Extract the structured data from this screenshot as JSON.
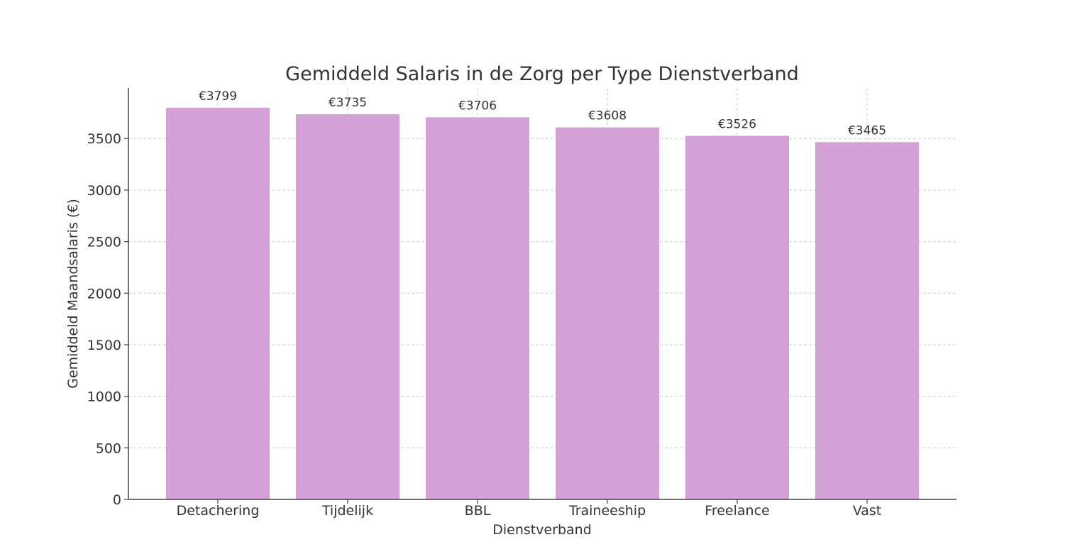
{
  "chart_data": {
    "type": "bar",
    "title": "Gemiddeld Salaris in de Zorg per Type Dienstverband",
    "xlabel": "Dienstverband",
    "ylabel": "Gemiddeld Maandsalaris (€)",
    "categories": [
      "Detachering",
      "Tijdelijk",
      "BBL",
      "Traineeship",
      "Freelance",
      "Vast"
    ],
    "values": [
      3799,
      3735,
      3706,
      3608,
      3526,
      3465
    ],
    "data_labels": [
      "€3799",
      "€3735",
      "€3706",
      "€3608",
      "€3526",
      "€3465"
    ],
    "ylim": [
      0,
      3990
    ],
    "yticks": [
      0,
      500,
      1000,
      1500,
      2000,
      2500,
      3000,
      3500
    ],
    "grid": true,
    "colors": {
      "bar": "#d3a0d7",
      "axis": "#444444",
      "grid": "#cccccc",
      "text": "#333333"
    }
  }
}
